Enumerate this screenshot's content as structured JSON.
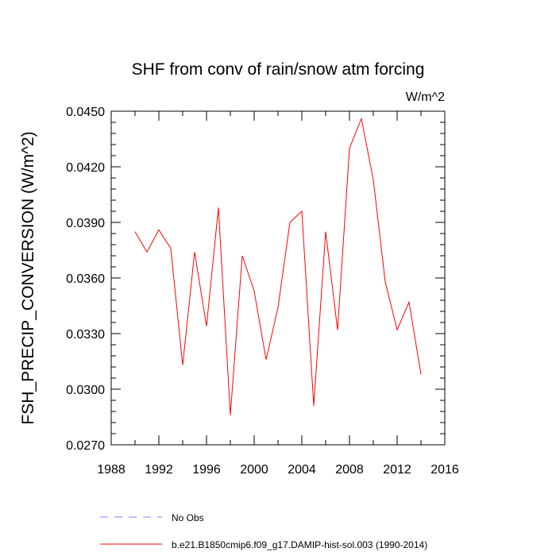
{
  "chart_data": {
    "type": "line",
    "title": "SHF from conv of rain/snow atm forcing",
    "units_label": "W/m^2",
    "ylabel": "FSH_PRECIP_CONVERSION  (W/m^2)",
    "xlabel": "",
    "xlim": [
      1988,
      2016
    ],
    "ylim": [
      0.027,
      0.045
    ],
    "x_ticks": [
      1988,
      1992,
      1996,
      2000,
      2004,
      2008,
      2012,
      2016
    ],
    "x_tick_labels": [
      "1988",
      "1992",
      "1996",
      "2000",
      "2004",
      "2008",
      "2012",
      "2016"
    ],
    "y_ticks": [
      0.027,
      0.03,
      0.033,
      0.036,
      0.039,
      0.042,
      0.045
    ],
    "y_tick_labels": [
      "0.0270",
      "0.0300",
      "0.0330",
      "0.0360",
      "0.0390",
      "0.0420",
      "0.0450"
    ],
    "grid": false,
    "legend_position": "bottom",
    "series": [
      {
        "name": "b.e21.B1850cmip6.f09_g17.DAMIP-hist-sol.003 (1990-2014)",
        "color": "#ff0000",
        "dash": "solid",
        "x": [
          1990,
          1991,
          1992,
          1993,
          1994,
          1995,
          1996,
          1997,
          1998,
          1999,
          2000,
          2001,
          2002,
          2003,
          2004,
          2005,
          2006,
          2007,
          2008,
          2009,
          2010,
          2011,
          2012,
          2013,
          2014
        ],
        "y": [
          0.0385,
          0.0374,
          0.0386,
          0.0376,
          0.0313,
          0.0374,
          0.0334,
          0.0398,
          0.0286,
          0.0372,
          0.0353,
          0.0316,
          0.0344,
          0.039,
          0.0396,
          0.0291,
          0.0385,
          0.0332,
          0.043,
          0.0446,
          0.0413,
          0.0358,
          0.0332,
          0.0347,
          0.0308
        ]
      }
    ],
    "legend": [
      {
        "label": "No Obs",
        "color": "#8080ff",
        "dash": "dashed"
      },
      {
        "label": "b.e21.B1850cmip6.f09_g17.DAMIP-hist-sol.003 (1990-2014)",
        "color": "#ff0000",
        "dash": "solid"
      }
    ]
  }
}
